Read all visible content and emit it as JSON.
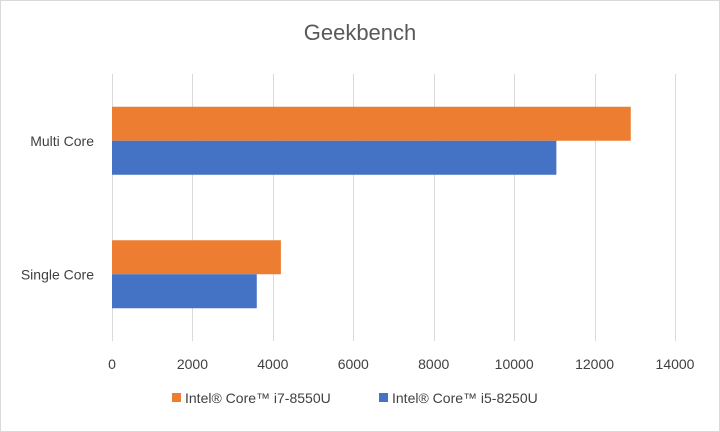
{
  "chart_data": {
    "type": "bar",
    "orientation": "horizontal",
    "title": "Geekbench",
    "xlabel": "",
    "ylabel": "",
    "categories": [
      "Multi Core",
      "Single Core"
    ],
    "series": [
      {
        "name": "Intel® Core™ i7-8550U",
        "color": "#ED7D31",
        "values": [
          12900,
          4200
        ]
      },
      {
        "name": "Intel® Core™ i5-8250U",
        "color": "#4472C4",
        "values": [
          11050,
          3600
        ]
      }
    ],
    "xlim": [
      0,
      14000
    ],
    "x_ticks": [
      "0",
      "2000",
      "4000",
      "6000",
      "8000",
      "10000",
      "12000",
      "14000"
    ],
    "x_tick_values": [
      0,
      2000,
      4000,
      6000,
      8000,
      10000,
      12000,
      14000
    ],
    "grid": "vertical",
    "legend_position": "bottom"
  }
}
